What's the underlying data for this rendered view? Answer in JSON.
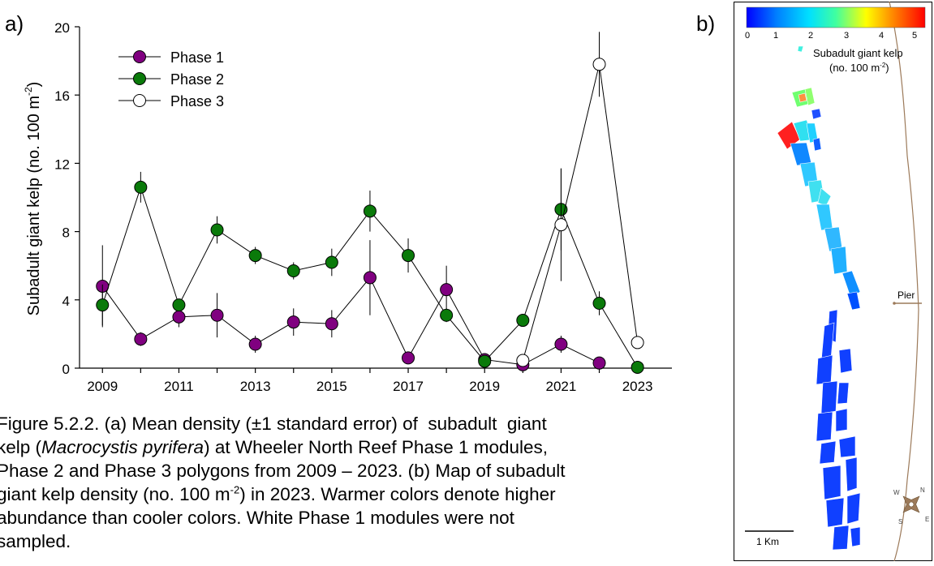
{
  "panel_a_label": "a)",
  "panel_b_label": "b)",
  "chart_data": {
    "type": "line",
    "title": "",
    "xlabel": "",
    "ylabel": "Subadult giant kelp (no. 100 m",
    "ylabel_sup": "-2",
    "ylabel_tail": ")",
    "xlim": [
      2008.4,
      2023.9
    ],
    "ylim": [
      0,
      20
    ],
    "x_ticks": [
      "2009",
      "2011",
      "2013",
      "2015",
      "2017",
      "2019",
      "2021",
      "2023"
    ],
    "y_ticks": [
      "0",
      "4",
      "8",
      "12",
      "16",
      "20"
    ],
    "legend_position": "top-left",
    "series": [
      {
        "name": "Phase 1",
        "marker_color": "#800080",
        "x": [
          2009,
          2010,
          2011,
          2012,
          2013,
          2014,
          2015,
          2016,
          2017,
          2018,
          2019,
          2020,
          2021,
          2022
        ],
        "y": [
          4.8,
          1.7,
          3.0,
          3.1,
          1.4,
          2.7,
          2.6,
          5.3,
          0.6,
          4.6,
          0.5,
          0.2,
          1.4,
          0.3
        ],
        "err": [
          2.4,
          0.4,
          0.6,
          1.3,
          0.5,
          0.8,
          0.8,
          2.2,
          0.1,
          1.4,
          0.15,
          0.1,
          0.5,
          0.1
        ]
      },
      {
        "name": "Phase 2",
        "marker_color": "#0a7a0a",
        "x": [
          2009,
          2010,
          2011,
          2012,
          2013,
          2014,
          2015,
          2016,
          2017,
          2018,
          2019,
          2020,
          2021,
          2022,
          2023
        ],
        "y": [
          3.7,
          10.6,
          3.7,
          8.1,
          6.6,
          5.7,
          6.2,
          9.2,
          6.6,
          3.1,
          0.4,
          2.8,
          9.3,
          3.8,
          0.05
        ],
        "err": [
          1.2,
          0.9,
          0.2,
          0.8,
          0.5,
          0.5,
          0.8,
          1.2,
          1.0,
          0.4,
          0.1,
          0.3,
          2.4,
          0.7,
          0.05
        ]
      },
      {
        "name": "Phase 3",
        "marker_color": "#ffffff",
        "x": [
          2020,
          2021,
          2022,
          2023
        ],
        "y": [
          0.45,
          8.4,
          17.8,
          1.5
        ],
        "err": [
          0.1,
          3.3,
          1.9,
          0.3
        ]
      }
    ]
  },
  "caption": {
    "line1": "Figure 5.2.2. (a) Mean density (±1 standard error) of  subadult  giant",
    "line2_pre": "kelp (",
    "line2_italic": "Macrocystis pyrifera",
    "line2_post": ") at Wheeler North Reef Phase 1 modules,",
    "line3": "Phase 2 and Phase 3 polygons from 2009 – 2023. (b) Map of subadult",
    "line4_pre": "giant kelp density (no. 100 m",
    "line4_sup": "-2",
    "line4_post": ") in 2023. Warmer colors denote higher",
    "line5": "abundance than cooler colors. White Phase 1 modules were not",
    "line6": "sampled."
  },
  "map": {
    "colorbar_ticks": [
      "0",
      "1",
      "2",
      "3",
      "4",
      "5"
    ],
    "colorbar_colors": [
      "#0000ff",
      "#0080ff",
      "#00e0ff",
      "#40ffa0",
      "#ffff00",
      "#ff8000",
      "#ff0000"
    ],
    "legend_title_line1": "Subadult giant kelp",
    "legend_title_line2_pre": "(no. 100 m",
    "legend_title_line2_sup": "-2",
    "legend_title_line2_post": ")",
    "pier_label": "Pier",
    "scale_label": "1 Km",
    "compass": [
      "N",
      "E",
      "S",
      "W"
    ]
  }
}
